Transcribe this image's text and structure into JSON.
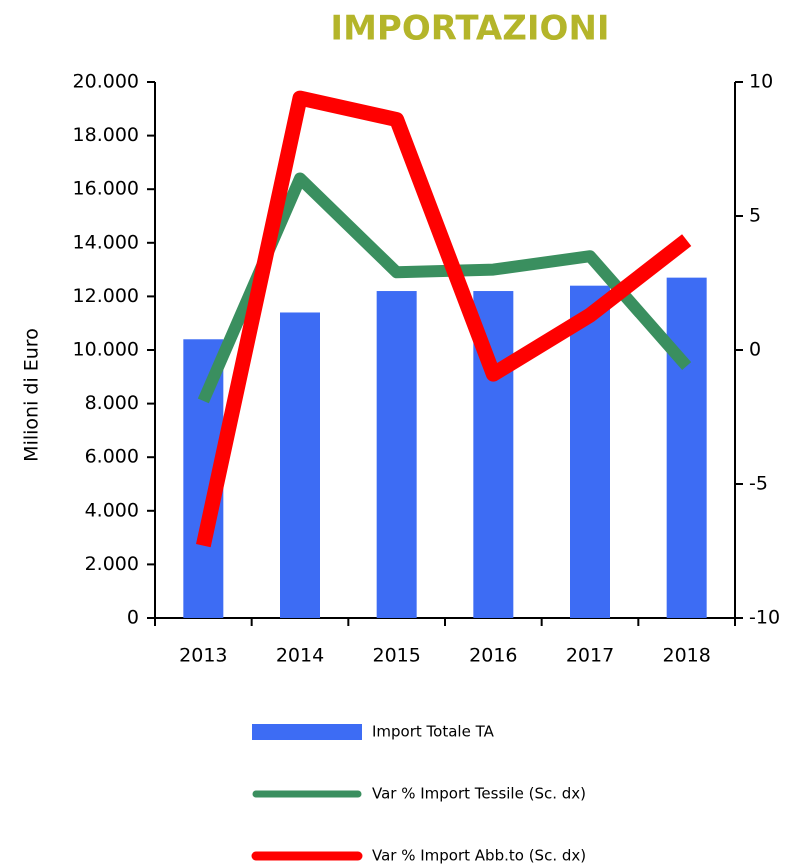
{
  "chart_data": {
    "type": "bar-line",
    "title": "IMPORTAZIONI",
    "y_label": "Milioni di Euro",
    "categories": [
      "2013",
      "2014",
      "2015",
      "2016",
      "2017",
      "2018"
    ],
    "series": [
      {
        "name": "Import Totale TA",
        "type": "bar",
        "color": "#3d6cf4",
        "values": [
          10400,
          11400,
          12200,
          12200,
          12400,
          12700
        ]
      },
      {
        "name": "Var % Import Tessile (Sc. dx)",
        "type": "line",
        "axis": "y2",
        "color": "#3a8f5f",
        "values": [
          -1.9,
          6.4,
          2.9,
          3.0,
          3.5,
          -0.6
        ]
      },
      {
        "name": "Var % Import Abb.to (Sc. dx)",
        "type": "line",
        "axis": "y2",
        "color": "#ff0000",
        "values": [
          -7.3,
          9.4,
          8.6,
          -0.9,
          1.3,
          4.1
        ]
      }
    ],
    "ylim": [
      0,
      20000
    ],
    "yticks": [
      0,
      {
        "value": 2000,
        "label": "2.000"
      },
      {
        "value": 4000,
        "label": "4.000"
      },
      {
        "value": 6000,
        "label": "6.000"
      },
      {
        "value": 8000,
        "label": "8.000"
      },
      {
        "value": 10000,
        "label": "10.000"
      },
      {
        "value": 12000,
        "label": "12.000"
      },
      {
        "value": 14000,
        "label": "14.000"
      },
      {
        "value": 16000,
        "label": "16.000"
      },
      {
        "value": 18000,
        "label": "18.000"
      },
      {
        "value": 20000,
        "label": "20.000"
      }
    ],
    "y2lim": [
      -10,
      10
    ],
    "y2ticks": [
      -10,
      -5,
      0,
      5,
      10
    ],
    "legend": "bottom",
    "grid": false
  }
}
